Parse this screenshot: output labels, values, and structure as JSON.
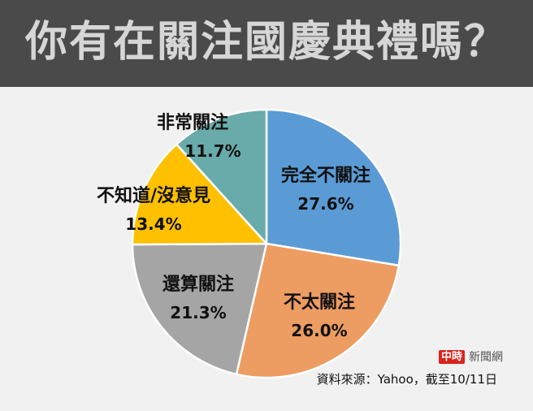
{
  "header": {
    "title": "你有在關注國慶典禮嗎？"
  },
  "chart_data": {
    "type": "pie",
    "title": "你有在關注國慶典禮嗎？",
    "categories": [
      "完全不關注",
      "不太關注",
      "還算關注",
      "不知道/沒意見",
      "非常關注"
    ],
    "values": [
      27.6,
      26.0,
      21.3,
      13.4,
      11.7
    ],
    "labels": [
      "27.6%",
      "26.0%",
      "21.3%",
      "13.4%",
      "11.7%"
    ],
    "colors": [
      "#5b9bd5",
      "#ed9c62",
      "#a5a5a5",
      "#ffc000",
      "#69aaaa"
    ],
    "start_angle": "12 o'clock, clockwise",
    "legend": "none (labels on slices)"
  },
  "slices": [
    {
      "name": "完全不關注",
      "pct": "27.6%"
    },
    {
      "name": "不太關注",
      "pct": "26.0%"
    },
    {
      "name": "還算關注",
      "pct": "21.3%"
    },
    {
      "name": "不知道/沒意見",
      "pct": "13.4%"
    },
    {
      "name": "非常關注",
      "pct": "11.7%"
    }
  ],
  "footer": {
    "logo_mark": "中時",
    "logo_text": "新聞網",
    "source": "資料來源：Yahoo，截至10/11日"
  }
}
